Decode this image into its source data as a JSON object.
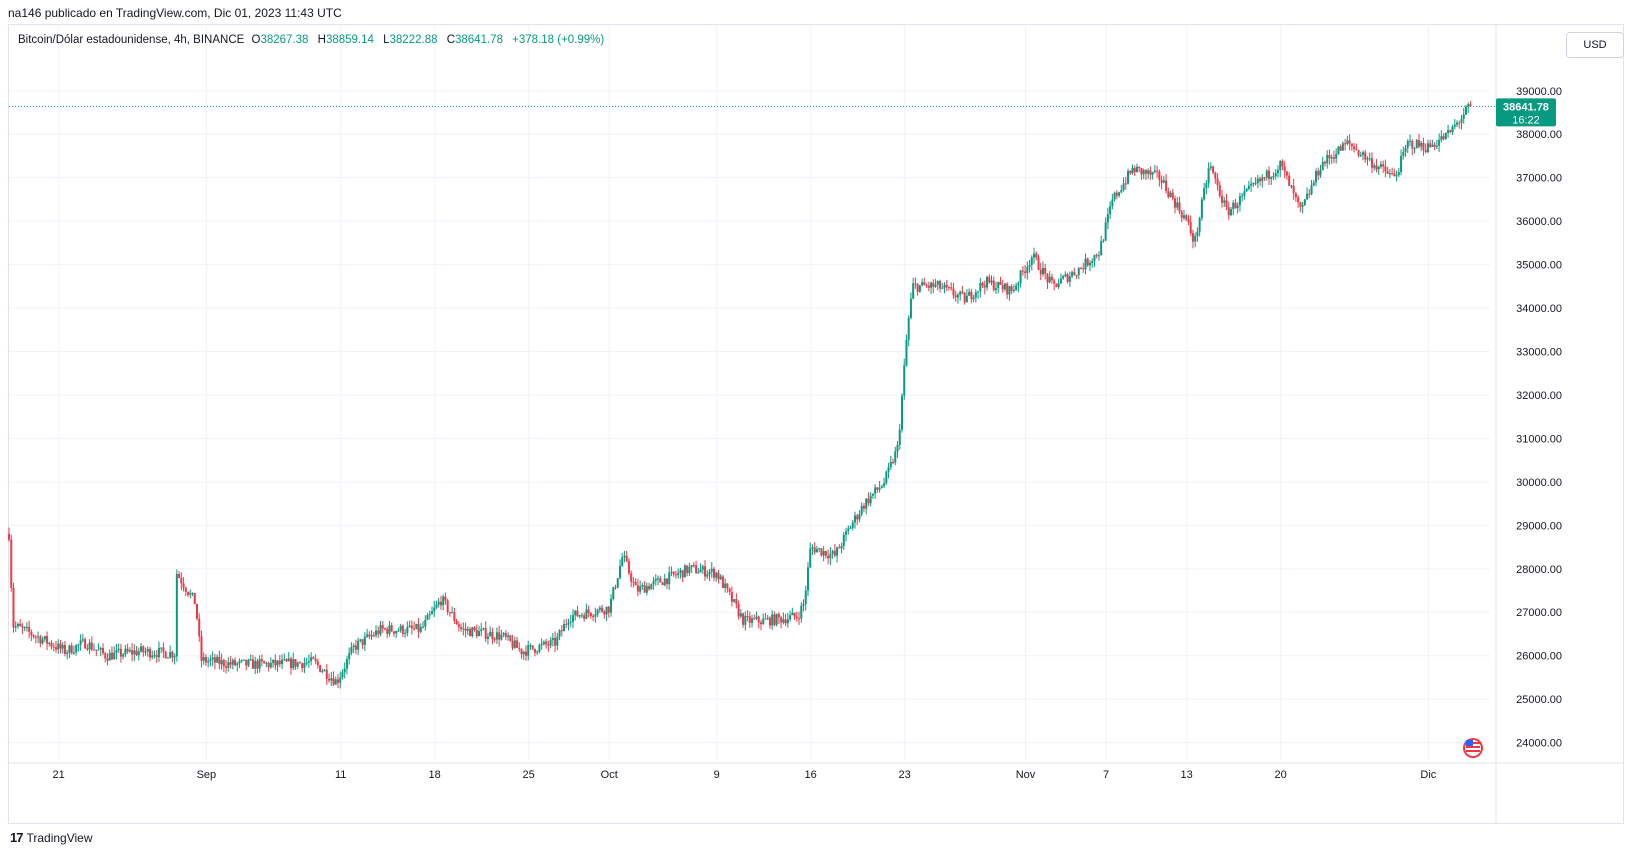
{
  "header": {
    "publisher_line": "na146 publicado en TradingView.com, Dic 01, 2023 11:43 UTC"
  },
  "legend": {
    "symbol": "Bitcoin/Dólar estadounidense, 4h, BINANCE",
    "open_label": "O",
    "open": "38267.38",
    "high_label": "H",
    "high": "38859.14",
    "low_label": "L",
    "low": "38222.88",
    "close_label": "C",
    "close": "38641.78",
    "change": "+378.18 (+0.99%)"
  },
  "currency_button": "USD",
  "price_tag": {
    "price": "38641.78",
    "countdown": "16:22"
  },
  "footer": {
    "brand": "TradingView",
    "logo_glyph": "17"
  },
  "colors": {
    "up": "#089981",
    "down": "#f23645",
    "grid": "#f0f3fa",
    "accent": "#089981"
  },
  "chart_data": {
    "type": "candlestick",
    "interval": "4h",
    "y_ticks": [
      "39000.00",
      "38000.00",
      "37000.00",
      "36000.00",
      "35000.00",
      "34000.00",
      "33000.00",
      "32000.00",
      "31000.00",
      "30000.00",
      "29000.00",
      "28000.00",
      "27000.00",
      "26000.00",
      "25000.00",
      "24000.00"
    ],
    "ylim": [
      23600,
      39800
    ],
    "x_ticks": [
      {
        "label": "21",
        "day": 21
      },
      {
        "label": "Sep",
        "day": 32
      },
      {
        "label": "11",
        "day": 42
      },
      {
        "label": "18",
        "day": 49
      },
      {
        "label": "25",
        "day": 56
      },
      {
        "label": "Oct",
        "day": 62
      },
      {
        "label": "9",
        "day": 70
      },
      {
        "label": "16",
        "day": 77
      },
      {
        "label": "23",
        "day": 84
      },
      {
        "label": "Nov",
        "day": 93
      },
      {
        "label": "7",
        "day": 99
      },
      {
        "label": "13",
        "day": 105
      },
      {
        "label": "20",
        "day": 112
      },
      {
        "label": "Dic",
        "day": 123
      }
    ],
    "x_start_day": 17.3,
    "x_end_day": 126.1,
    "last_price": 38641.78,
    "key_points": [
      {
        "day": 17.3,
        "price": 28800
      },
      {
        "day": 17.6,
        "price": 26700
      },
      {
        "day": 19,
        "price": 26500
      },
      {
        "day": 21.5,
        "price": 26100
      },
      {
        "day": 23,
        "price": 26300
      },
      {
        "day": 24.5,
        "price": 26000
      },
      {
        "day": 27,
        "price": 26100
      },
      {
        "day": 29.7,
        "price": 26050
      },
      {
        "day": 29.8,
        "price": 27900
      },
      {
        "day": 31.2,
        "price": 27200
      },
      {
        "day": 31.6,
        "price": 25900
      },
      {
        "day": 34,
        "price": 25800
      },
      {
        "day": 37,
        "price": 25800
      },
      {
        "day": 40,
        "price": 25850
      },
      {
        "day": 41.7,
        "price": 25400
      },
      {
        "day": 43,
        "price": 26200
      },
      {
        "day": 45,
        "price": 26600
      },
      {
        "day": 48,
        "price": 26600
      },
      {
        "day": 49.5,
        "price": 27300
      },
      {
        "day": 51,
        "price": 26600
      },
      {
        "day": 54,
        "price": 26450
      },
      {
        "day": 55.5,
        "price": 26100
      },
      {
        "day": 58,
        "price": 26300
      },
      {
        "day": 59,
        "price": 26900
      },
      {
        "day": 62,
        "price": 27100
      },
      {
        "day": 63,
        "price": 28300
      },
      {
        "day": 64,
        "price": 27500
      },
      {
        "day": 66.5,
        "price": 27800
      },
      {
        "day": 68,
        "price": 28000
      },
      {
        "day": 70,
        "price": 27900
      },
      {
        "day": 72,
        "price": 26800
      },
      {
        "day": 73.5,
        "price": 26800
      },
      {
        "day": 76,
        "price": 26900
      },
      {
        "day": 76.5,
        "price": 27200
      },
      {
        "day": 77,
        "price": 28500
      },
      {
        "day": 78.8,
        "price": 28300
      },
      {
        "day": 80,
        "price": 29000
      },
      {
        "day": 81,
        "price": 29500
      },
      {
        "day": 82.5,
        "price": 30000
      },
      {
        "day": 83.5,
        "price": 30800
      },
      {
        "day": 84.2,
        "price": 33500
      },
      {
        "day": 84.6,
        "price": 34500
      },
      {
        "day": 86.5,
        "price": 34500
      },
      {
        "day": 88.5,
        "price": 34200
      },
      {
        "day": 90,
        "price": 34600
      },
      {
        "day": 92,
        "price": 34400
      },
      {
        "day": 93.5,
        "price": 35200
      },
      {
        "day": 95,
        "price": 34500
      },
      {
        "day": 97,
        "price": 34900
      },
      {
        "day": 98.5,
        "price": 35300
      },
      {
        "day": 99.5,
        "price": 36500
      },
      {
        "day": 101,
        "price": 37200
      },
      {
        "day": 103,
        "price": 37000
      },
      {
        "day": 105,
        "price": 36000
      },
      {
        "day": 105.6,
        "price": 35500
      },
      {
        "day": 106.7,
        "price": 37300
      },
      {
        "day": 108,
        "price": 36200
      },
      {
        "day": 110,
        "price": 36800
      },
      {
        "day": 112,
        "price": 37300
      },
      {
        "day": 113.5,
        "price": 36200
      },
      {
        "day": 115,
        "price": 37300
      },
      {
        "day": 117,
        "price": 37800
      },
      {
        "day": 119,
        "price": 37300
      },
      {
        "day": 120.5,
        "price": 37000
      },
      {
        "day": 121.5,
        "price": 37800
      },
      {
        "day": 123,
        "price": 37700
      },
      {
        "day": 124.5,
        "price": 38000
      },
      {
        "day": 126.1,
        "price": 38641.78
      }
    ]
  }
}
